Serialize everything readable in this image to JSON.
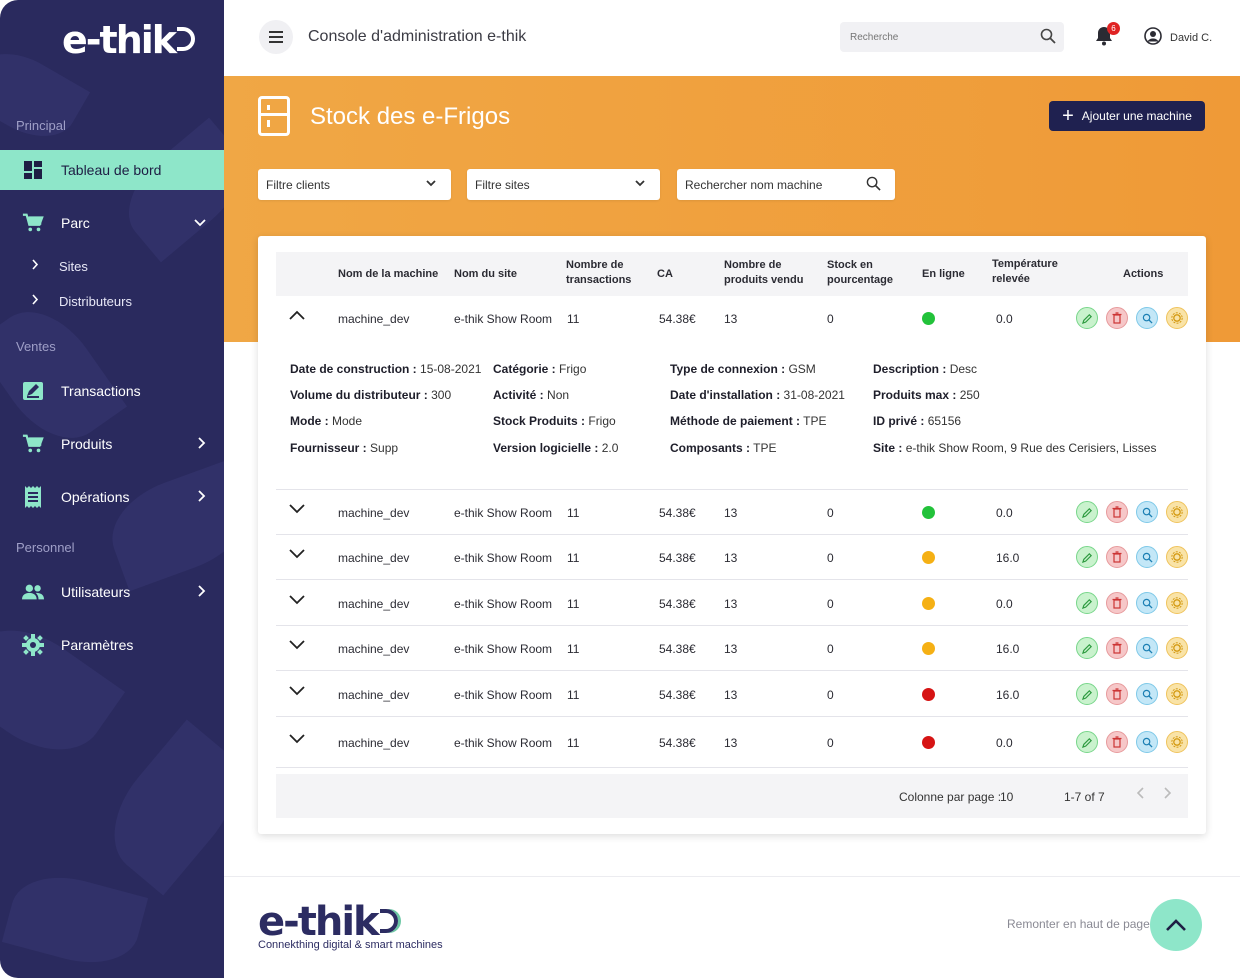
{
  "brand": {
    "logo_text": "e-thik",
    "tagline": "Connekthing digital & smart machines"
  },
  "sidebar": {
    "sections": {
      "principal": "Principal",
      "ventes": "Ventes",
      "personnel": "Personnel"
    },
    "items": [
      {
        "label": "Tableau de bord",
        "icon": "dashboard-icon",
        "active": true
      },
      {
        "label": "Parc",
        "icon": "cart-icon",
        "expanded": true
      },
      {
        "label": "Sites",
        "icon": "chevron-right-icon"
      },
      {
        "label": "Distributeurs",
        "icon": "chevron-right-icon"
      },
      {
        "label": "Transactions",
        "icon": "edit-icon"
      },
      {
        "label": "Produits",
        "icon": "cart-icon"
      },
      {
        "label": "Opérations",
        "icon": "receipt-icon"
      },
      {
        "label": "Utilisateurs",
        "icon": "users-icon"
      },
      {
        "label": "Paramètres",
        "icon": "gear-icon"
      }
    ]
  },
  "header": {
    "title": "Console d'administration e-thik",
    "search_placeholder": "Recherche",
    "notification_count": "6",
    "user_name": "David C."
  },
  "page": {
    "title": "Stock des e-Frigos",
    "add_button": "Ajouter une machine",
    "filters": {
      "clients": "Filtre clients",
      "sites": "Filtre sites",
      "machine_search_placeholder": "Rechercher nom machine"
    }
  },
  "table": {
    "columns": {
      "machine": "Nom de la machine",
      "site": "Nom du site",
      "transactions_1": "Nombre de",
      "transactions_2": "transactions",
      "ca": "CA",
      "sold_1": "Nombre de",
      "sold_2": "produits vendu",
      "stock_1": "Stock en",
      "stock_2": "pourcentage",
      "online": "En ligne",
      "temp_1": "Température",
      "temp_2": "relevée",
      "actions": "Actions"
    },
    "status_colors": {
      "green": "#22c23a",
      "orange": "#f5b014",
      "red": "#d61414"
    },
    "rows": [
      {
        "machine": "machine_dev",
        "site": "e-thik Show Room",
        "transactions": "11",
        "ca": "54.38€",
        "sold": "13",
        "stock": "0",
        "status": "green",
        "temp": "0.0",
        "expanded": true
      },
      {
        "machine": "machine_dev",
        "site": "e-thik Show Room",
        "transactions": "11",
        "ca": "54.38€",
        "sold": "13",
        "stock": "0",
        "status": "green",
        "temp": "0.0"
      },
      {
        "machine": "machine_dev",
        "site": "e-thik Show Room",
        "transactions": "11",
        "ca": "54.38€",
        "sold": "13",
        "stock": "0",
        "status": "orange",
        "temp": "16.0"
      },
      {
        "machine": "machine_dev",
        "site": "e-thik Show Room",
        "transactions": "11",
        "ca": "54.38€",
        "sold": "13",
        "stock": "0",
        "status": "orange",
        "temp": "0.0"
      },
      {
        "machine": "machine_dev",
        "site": "e-thik Show Room",
        "transactions": "11",
        "ca": "54.38€",
        "sold": "13",
        "stock": "0",
        "status": "orange",
        "temp": "16.0"
      },
      {
        "machine": "machine_dev",
        "site": "e-thik Show Room",
        "transactions": "11",
        "ca": "54.38€",
        "sold": "13",
        "stock": "0",
        "status": "red",
        "temp": "16.0"
      },
      {
        "machine": "machine_dev",
        "site": "e-thik Show Room",
        "transactions": "11",
        "ca": "54.38€",
        "sold": "13",
        "stock": "0",
        "status": "red",
        "temp": "0.0"
      }
    ],
    "details": [
      {
        "label": "Date de construction :",
        "value": "15-08-2021"
      },
      {
        "label": "Catégorie :",
        "value": "Frigo"
      },
      {
        "label": "Type de connexion :",
        "value": "GSM"
      },
      {
        "label": "Description :",
        "value": "Desc"
      },
      {
        "label": "Volume du distributeur :",
        "value": "300"
      },
      {
        "label": "Activité :",
        "value": "Non"
      },
      {
        "label": "Date d'installation :",
        "value": "31-08-2021"
      },
      {
        "label": "Produits max :",
        "value": "250"
      },
      {
        "label": "Mode :",
        "value": "Mode"
      },
      {
        "label": "Stock Produits :",
        "value": "Frigo"
      },
      {
        "label": "Méthode de paiement :",
        "value": "TPE"
      },
      {
        "label": "ID privé :",
        "value": "65156"
      },
      {
        "label": "Fournisseur :",
        "value": "Supp"
      },
      {
        "label": "Version logicielle :",
        "value": "2.0"
      },
      {
        "label": "Composants :",
        "value": "TPE"
      },
      {
        "label": "Site :",
        "value": "e-thik Show Room, 9 Rue des Cerisiers, Lisses"
      }
    ],
    "pagination": {
      "rows_per_page_label": "Colonne par page :",
      "rows_per_page": "10",
      "range": "1-7 of 7"
    }
  },
  "footer": {
    "back_to_top": "Remonter en haut de page"
  }
}
